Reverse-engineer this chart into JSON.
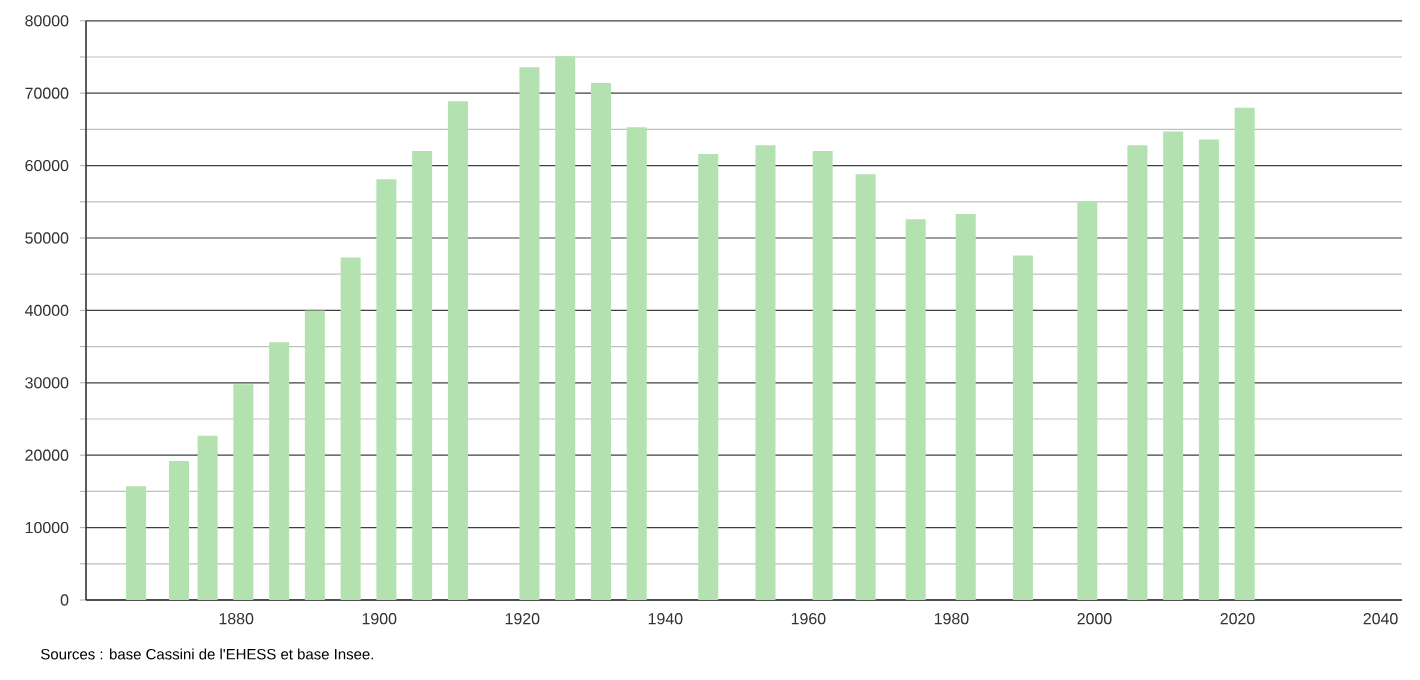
{
  "chart_data": {
    "type": "bar",
    "x": [
      1866,
      1872,
      1876,
      1881,
      1886,
      1891,
      1896,
      1901,
      1906,
      1911,
      1921,
      1926,
      1931,
      1936,
      1946,
      1954,
      1962,
      1968,
      1975,
      1982,
      1990,
      1999,
      2006,
      2011,
      2016,
      2021
    ],
    "values": [
      15700,
      19200,
      22700,
      29800,
      35600,
      40000,
      47300,
      58100,
      62000,
      68900,
      73600,
      75100,
      71400,
      65300,
      61600,
      62800,
      62000,
      58800,
      52600,
      53300,
      47600,
      55100,
      62800,
      64700,
      63600,
      68000
    ],
    "color": "#b3e2b0",
    "xlim": [
      1859,
      2043
    ],
    "xticks": [
      1880,
      1900,
      1920,
      1940,
      1960,
      1980,
      2000,
      2020,
      2040
    ],
    "ylim": [
      0,
      80000
    ],
    "yticks": [
      0,
      {
        "value": 5000,
        "label": null
      },
      10000,
      {
        "value": 15000,
        "label": null
      },
      20000,
      {
        "value": 25000,
        "label": null
      },
      30000,
      {
        "value": 35000,
        "label": null
      },
      40000,
      {
        "value": 45000,
        "label": null
      },
      50000,
      {
        "value": 55000,
        "label": null
      },
      60000,
      {
        "value": 65000,
        "label": null
      },
      70000,
      {
        "value": 75000,
        "label": null
      },
      80000
    ],
    "grid": "y",
    "annotations": [
      "Sources : base Cassini de l'EHESS et base Insee."
    ]
  }
}
